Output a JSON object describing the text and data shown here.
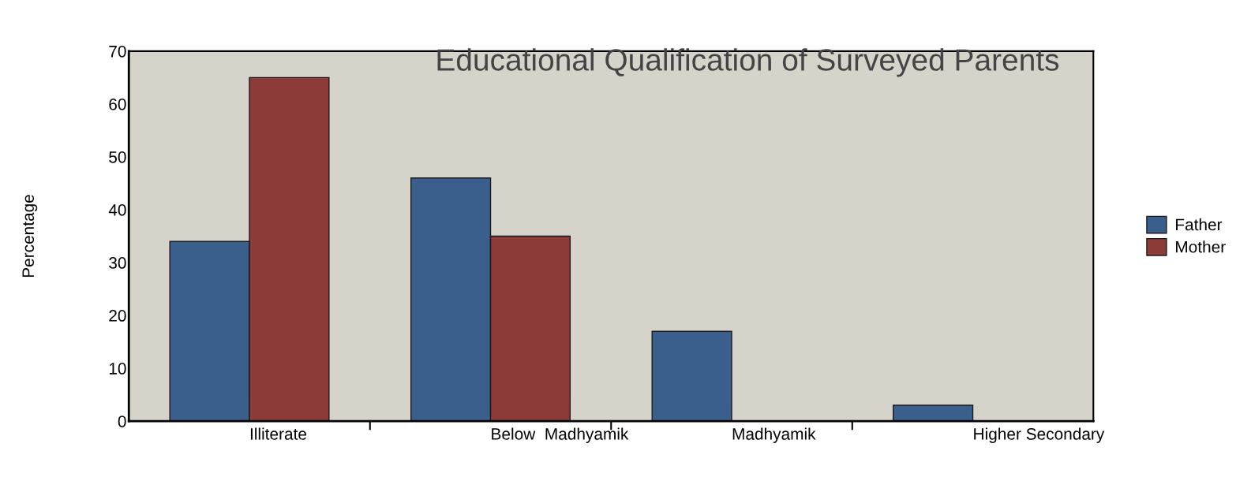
{
  "chart_data": {
    "type": "bar",
    "title": "Educational Qualification of Surveyed Parents",
    "ylabel": "Percentage",
    "categories": [
      "Illiterate",
      "Below  Madhyamik",
      "Madhyamik",
      "Higher Secondary"
    ],
    "series": [
      {
        "name": "Father",
        "color": "#3b5f8c",
        "values": [
          34,
          46,
          17,
          3
        ]
      },
      {
        "name": "Mother",
        "color": "#8d3b39",
        "values": [
          65,
          35,
          null,
          null
        ]
      }
    ],
    "ylim": [
      0,
      70
    ],
    "yticks": [
      0,
      10,
      20,
      30,
      40,
      50,
      60,
      70
    ],
    "grid": false,
    "legend": "right"
  }
}
